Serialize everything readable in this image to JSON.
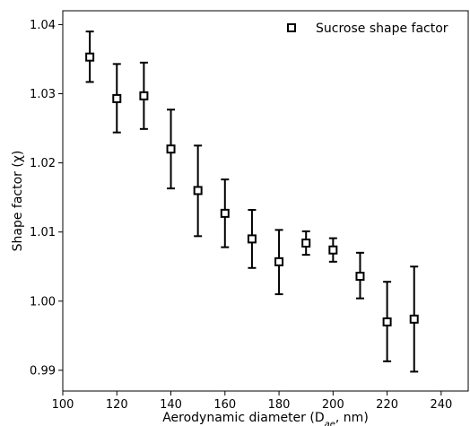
{
  "chart_data": {
    "type": "scatter",
    "title": "",
    "xlabel_prefix": "Aerodynamic diameter (D",
    "xlabel_sub": "ae",
    "xlabel_suffix": ", nm)",
    "ylabel": "Shape factor (χ)",
    "xlim": [
      100,
      250
    ],
    "ylim": [
      0.987,
      1.042
    ],
    "xticks": [
      100,
      120,
      140,
      160,
      180,
      200,
      220,
      240
    ],
    "yticks": [
      0.99,
      1.0,
      1.01,
      1.02,
      1.03,
      1.04
    ],
    "xtick_labels": [
      "100",
      "120",
      "140",
      "160",
      "180",
      "200",
      "220",
      "240"
    ],
    "ytick_labels": [
      "0.99",
      "1.00",
      "1.01",
      "1.02",
      "1.03",
      "1.04"
    ],
    "grid": false,
    "legend_position": "top-right",
    "series": [
      {
        "name": "Sucrose shape factor",
        "marker": "open-square",
        "color": "#000000",
        "x": [
          110,
          120,
          130,
          140,
          150,
          160,
          170,
          180,
          190,
          200,
          210,
          220,
          230
        ],
        "y": [
          1.0353,
          1.0293,
          1.0297,
          1.022,
          1.016,
          1.0127,
          1.009,
          1.0057,
          1.0084,
          1.0074,
          1.0036,
          0.997,
          0.9974
        ],
        "err_low": [
          1.0317,
          1.0244,
          1.0249,
          1.0163,
          1.0094,
          1.0078,
          1.0048,
          1.001,
          1.0067,
          1.0057,
          1.0004,
          0.9913,
          0.9898
        ],
        "err_high": [
          1.039,
          1.0343,
          1.0345,
          1.0277,
          1.0225,
          1.0176,
          1.0132,
          1.0103,
          1.0101,
          1.0091,
          1.007,
          1.0028,
          1.005
        ]
      }
    ]
  }
}
